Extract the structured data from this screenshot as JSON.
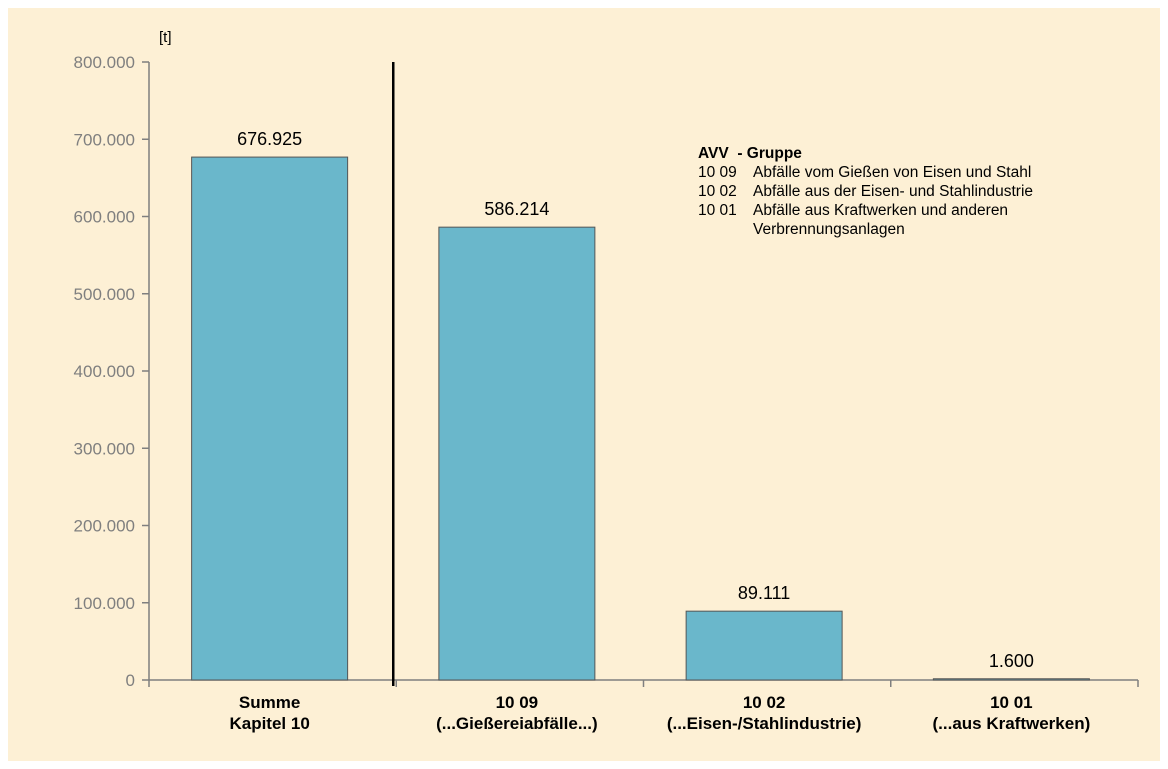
{
  "chart_data": {
    "type": "bar",
    "unit_label": "[t]",
    "categories": [
      [
        "Summe",
        "Kapitel 10"
      ],
      [
        "10 09",
        "(...Gießereiabfälle...)"
      ],
      [
        "10 02",
        "(...Eisen-/Stahlindustrie)"
      ],
      [
        "10 01",
        "(...aus Kraftwerken)"
      ]
    ],
    "values": [
      676925,
      586214,
      89111,
      1600
    ],
    "value_labels": [
      "676.925",
      "586.214",
      "89.111",
      "1.600"
    ],
    "ylim": [
      0,
      800000
    ],
    "yticks": [
      0,
      100000,
      200000,
      300000,
      400000,
      500000,
      600000,
      700000,
      800000
    ],
    "ytick_labels": [
      "0",
      "100.000",
      "200.000",
      "300.000",
      "400.000",
      "500.000",
      "600.000",
      "700.000",
      "800.000"
    ],
    "bar_color": "#6ab7cb",
    "grid": false,
    "separator_after_category": 0
  },
  "legend": {
    "title": "AVV  - Gruppe",
    "items": [
      {
        "code": "10 09",
        "text": "Abfälle vom Gießen von Eisen und Stahl"
      },
      {
        "code": "10 02",
        "text": "Abfälle aus der Eisen- und Stahlindustrie"
      },
      {
        "code": "10 01",
        "text": "Abfälle aus Kraftwerken und anderen Verbrennungsanlagen"
      }
    ]
  }
}
